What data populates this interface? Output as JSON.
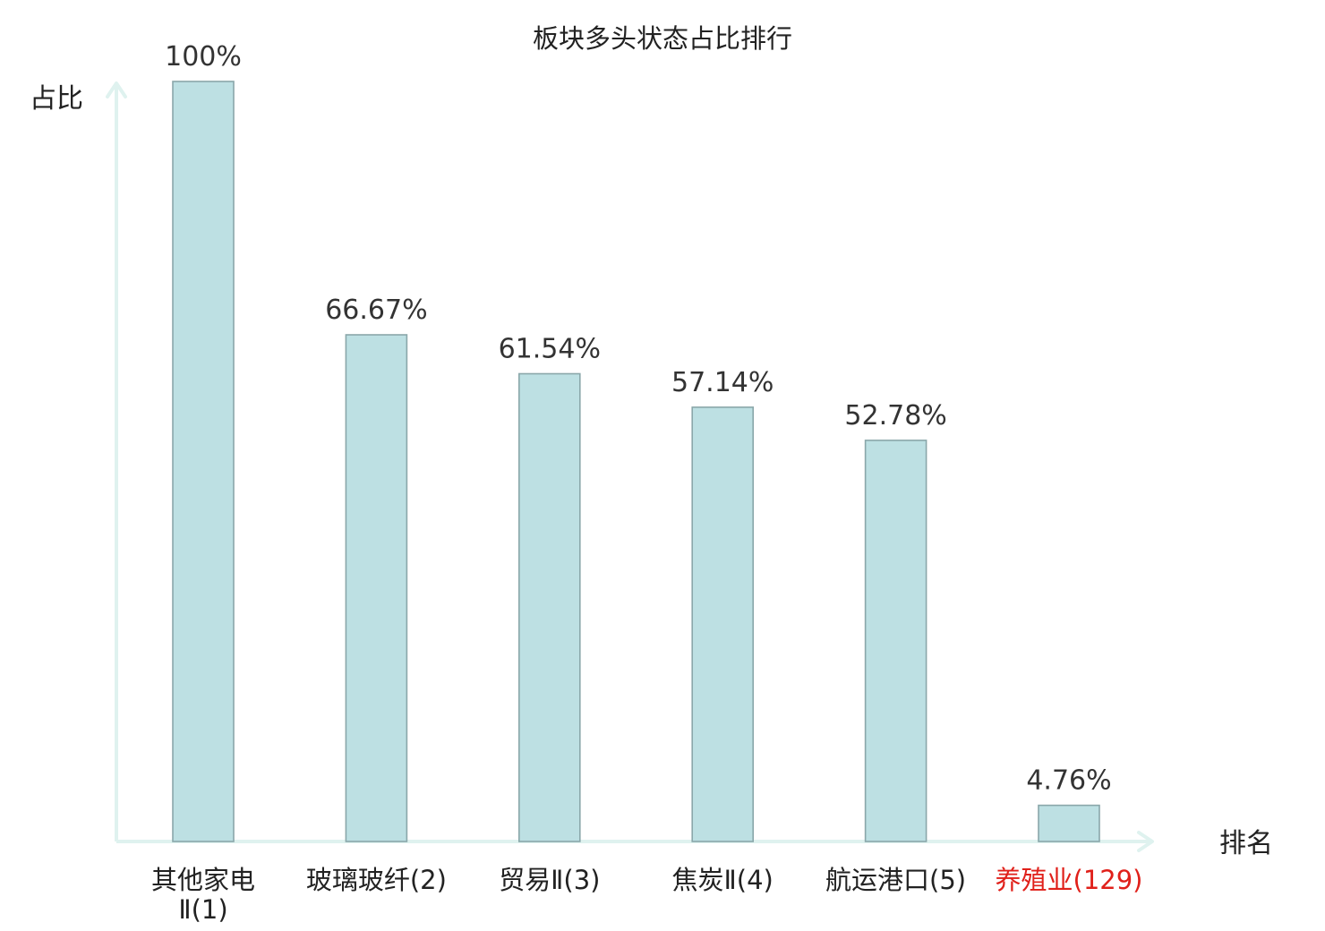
{
  "chart_data": {
    "type": "bar",
    "title": "板块多头状态占比排行",
    "ylabel": "占比",
    "xlabel": "排名",
    "ylim": [
      0,
      100
    ],
    "grid": false,
    "categories": [
      {
        "lines": [
          "其他家电",
          "Ⅱ(1)"
        ],
        "highlight": false
      },
      {
        "lines": [
          "玻璃玻纤(2)"
        ],
        "highlight": false
      },
      {
        "lines": [
          "贸易Ⅱ(3)"
        ],
        "highlight": false
      },
      {
        "lines": [
          "焦炭Ⅱ(4)"
        ],
        "highlight": false
      },
      {
        "lines": [
          "航运港口(5)"
        ],
        "highlight": false
      },
      {
        "lines": [
          "养殖业(129)"
        ],
        "highlight": true
      }
    ],
    "values": [
      100,
      66.67,
      61.54,
      57.14,
      52.78,
      4.76
    ],
    "value_labels": [
      "100%",
      "66.67%",
      "61.54%",
      "57.14%",
      "52.78%",
      "4.76%"
    ]
  },
  "colors": {
    "bar_fill": "#bde0e3",
    "bar_stroke": "#8aa7aa",
    "axis": "#dff2ef",
    "text": "#222222",
    "value_text": "#333333",
    "highlight_text": "#e0201a"
  }
}
